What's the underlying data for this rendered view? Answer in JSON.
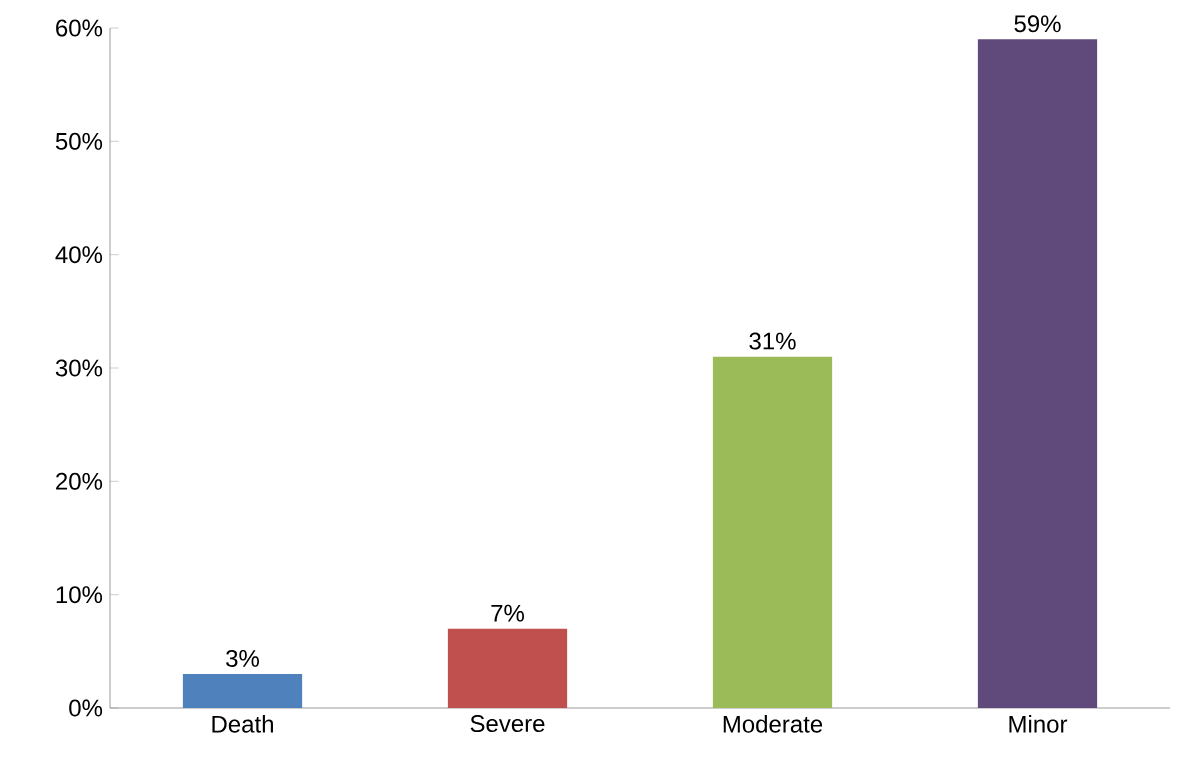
{
  "chart_data": {
    "type": "bar",
    "categories": [
      "Death",
      "Severe",
      "Moderate",
      "Minor"
    ],
    "values": [
      3,
      7,
      31,
      59
    ],
    "value_labels": [
      "3%",
      "7%",
      "31%",
      "59%"
    ],
    "colors": [
      "#4f81bd",
      "#c0504d",
      "#9bbb59",
      "#604a7b"
    ],
    "ylim": [
      0,
      60
    ],
    "yticks": [
      {
        "value": 0,
        "label": "0%"
      },
      {
        "value": 10,
        "label": "10%"
      },
      {
        "value": 20,
        "label": "20%"
      },
      {
        "value": 30,
        "label": "30%"
      },
      {
        "value": 40,
        "label": "40%"
      },
      {
        "value": 50,
        "label": "50%"
      },
      {
        "value": 60,
        "label": "60%"
      }
    ],
    "grid": false
  }
}
